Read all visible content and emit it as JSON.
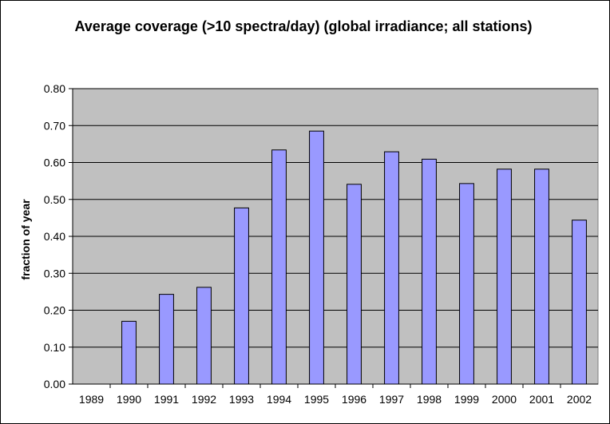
{
  "chart_data": {
    "type": "bar",
    "title": "Average coverage (>10 spectra/day) (global irradiance; all stations)",
    "xlabel": "",
    "ylabel": "fraction of year",
    "categories": [
      "1989",
      "1990",
      "1991",
      "1992",
      "1993",
      "1994",
      "1995",
      "1996",
      "1997",
      "1998",
      "1999",
      "2000",
      "2001",
      "2002"
    ],
    "values": [
      0,
      0.17,
      0.243,
      0.262,
      0.477,
      0.634,
      0.685,
      0.541,
      0.629,
      0.609,
      0.543,
      0.582,
      0.582,
      0.444
    ],
    "ylim": [
      0,
      0.8
    ],
    "yticks": [
      "0.00",
      "0.10",
      "0.20",
      "0.30",
      "0.40",
      "0.50",
      "0.60",
      "0.70",
      "0.80"
    ],
    "grid": true,
    "legend": "none",
    "colors": {
      "bar": "#9999ff",
      "plot_area": "#c0c0c0",
      "gridline": "#000000"
    }
  }
}
